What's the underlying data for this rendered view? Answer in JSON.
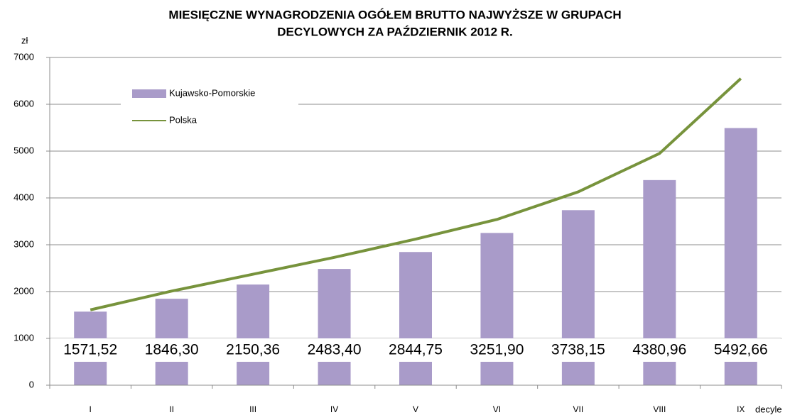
{
  "chart_data": {
    "type": "bar",
    "title": [
      "MIESIĘCZNE WYNAGRODZENIA OGÓŁEM BRUTTO NAJWYŻSZE  W GRUPACH",
      "DECYLOWYCH  ZA PAŹDZIERNIK 2012 R."
    ],
    "y_label": "zł",
    "x_label": "decyle",
    "categories": [
      "I",
      "II",
      "III",
      "IV",
      "V",
      "VI",
      "VII",
      "VIII",
      "IX"
    ],
    "series": [
      {
        "name": "Kujawsko-Pomorskie",
        "type": "bar",
        "color": "#a99bc9",
        "values": [
          1571.52,
          1846.3,
          2150.36,
          2483.4,
          2844.75,
          3251.9,
          3738.15,
          4380.96,
          5492.66
        ],
        "value_labels": [
          "1571,52",
          "1846,30",
          "2150,36",
          "2483,40",
          "2844,75",
          "3251,90",
          "3738,15",
          "4380,96",
          "5492,66"
        ]
      },
      {
        "name": "Polska",
        "type": "line",
        "color": "#77933c",
        "values": [
          1610,
          2010,
          2370,
          2730,
          3120,
          3540,
          4130,
          4950,
          6550
        ]
      }
    ],
    "ylim": [
      0,
      7000
    ],
    "yticks": [
      0,
      1000,
      2000,
      3000,
      4000,
      5000,
      6000,
      7000
    ],
    "grid": true,
    "legend": "top-left"
  }
}
